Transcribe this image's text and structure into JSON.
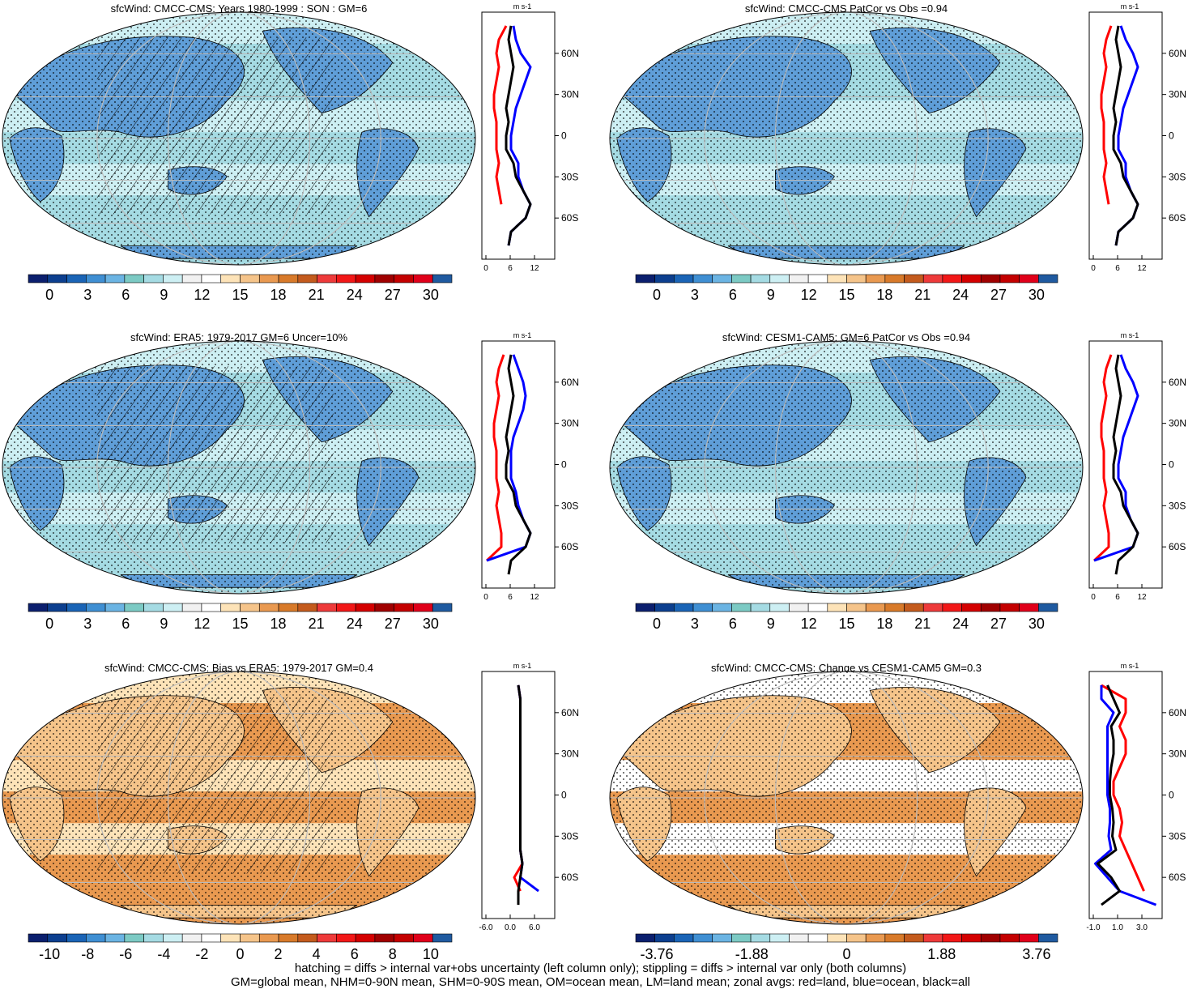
{
  "colorbars": {
    "abs": {
      "colors": [
        "#0b1f6e",
        "#0c3f8f",
        "#1a64b6",
        "#3f8fd3",
        "#6bb4e3",
        "#7ccac4",
        "#a5dbe3",
        "#cdeff3",
        "#f1f1f1",
        "#ffffff",
        "#fde3b8",
        "#f5c48a",
        "#e99950",
        "#d87a2a",
        "#c45b1d",
        "#ee3a3a",
        "#f21717",
        "#d40000",
        "#a00000",
        "#c40000",
        "#e0001a",
        "#1f5aa0"
      ],
      "tick_labels": [
        "0",
        "3",
        "6",
        "9",
        "12",
        "15",
        "18",
        "21",
        "24",
        "27",
        "30"
      ]
    },
    "bias": {
      "colors": [
        "#0b1f6e",
        "#0c3f8f",
        "#1a64b6",
        "#3f8fd3",
        "#6bb4e3",
        "#7ccac4",
        "#a5dbe3",
        "#cdeff3",
        "#f1f1f1",
        "#ffffff",
        "#fde3b8",
        "#f5c48a",
        "#e99950",
        "#d87a2a",
        "#c45b1d",
        "#ee3a3a",
        "#f21717",
        "#d40000",
        "#a00000",
        "#c40000",
        "#e0001a",
        "#1f5aa0"
      ],
      "tick_labels": [
        "-10",
        "-8",
        "-6",
        "-4",
        "-2",
        "0",
        "2",
        "4",
        "6",
        "8",
        "10"
      ]
    },
    "change": {
      "colors": [
        "#0b1f6e",
        "#0c3f8f",
        "#1a64b6",
        "#3f8fd3",
        "#6bb4e3",
        "#7ccac4",
        "#a5dbe3",
        "#cdeff3",
        "#f1f1f1",
        "#ffffff",
        "#fde3b8",
        "#f5c48a",
        "#e99950",
        "#d87a2a",
        "#c45b1d",
        "#ee3a3a",
        "#f21717",
        "#d40000",
        "#a00000",
        "#c40000",
        "#e0001a",
        "#1f5aa0"
      ],
      "tick_labels": [
        "-3.76",
        "-1.88",
        "0",
        "1.88",
        "3.76"
      ]
    }
  },
  "chart_data": [
    {
      "type": "heatmap",
      "title": "sfcWind: CMCC-CMS: Years 1980-1999 : SON : GM=6",
      "map_palette": [
        "#5f9ed8",
        "#a5dbe3",
        "#cdeff3"
      ],
      "hatching": true,
      "colorbar": "abs",
      "zonal_panel": {
        "title": "m s-1",
        "xticks": [
          "0",
          "6",
          "12"
        ],
        "xlim": [
          0,
          15
        ],
        "yticks": [
          "60N",
          "30N",
          "0",
          "30S",
          "60S"
        ],
        "lat": [
          80,
          70,
          60,
          50,
          40,
          30,
          20,
          10,
          0,
          -10,
          -20,
          -30,
          -40,
          -50,
          -60,
          -70,
          -80
        ],
        "series": [
          {
            "name": "land",
            "color": "#ff0000",
            "values": [
              5,
              3.5,
              3,
              3.5,
              3,
              2.5,
              2.5,
              3,
              3,
              3,
              3.5,
              3,
              3.5,
              4,
              null,
              null,
              null
            ]
          },
          {
            "name": "ocean",
            "color": "#0000ff",
            "values": [
              6.5,
              7,
              8,
              10,
              9,
              8,
              7,
              6.5,
              6,
              6,
              7.5,
              7.5,
              8.5,
              10,
              9,
              6,
              5.5
            ]
          },
          {
            "name": "all",
            "color": "#000000",
            "values": [
              6,
              5.5,
              6,
              6.5,
              6,
              5.5,
              5,
              5.5,
              5,
              5,
              6.5,
              7,
              8.5,
              10,
              9,
              6,
              5.5
            ]
          }
        ]
      }
    },
    {
      "type": "heatmap",
      "title": "sfcWind: CMCC-CMS PatCor vs Obs =0.94",
      "map_palette": [
        "#5f9ed8",
        "#a5dbe3",
        "#cdeff3"
      ],
      "hatching": false,
      "colorbar": "abs",
      "zonal_panel": {
        "title": "m s-1",
        "xticks": [
          "0",
          "6",
          "12"
        ],
        "xlim": [
          0,
          15
        ],
        "yticks": [
          "60N",
          "30N",
          "0",
          "30S",
          "60S"
        ],
        "lat": [
          80,
          70,
          60,
          50,
          40,
          30,
          20,
          10,
          0,
          -10,
          -20,
          -30,
          -40,
          -50,
          -60,
          -70,
          -80
        ],
        "series": [
          {
            "name": "land",
            "color": "#ff0000",
            "values": [
              4.5,
              3.5,
              3,
              3.5,
              3,
              2.5,
              2.5,
              3,
              3,
              3,
              3.5,
              3,
              3.5,
              4,
              null,
              null,
              null
            ]
          },
          {
            "name": "ocean",
            "color": "#0000ff",
            "values": [
              6.5,
              7.5,
              9,
              10,
              9,
              8,
              7,
              6.5,
              6,
              6,
              7.5,
              7.5,
              8.5,
              10,
              9,
              6,
              5.5
            ]
          },
          {
            "name": "all",
            "color": "#000000",
            "values": [
              6,
              5.5,
              6,
              6.5,
              6,
              5.5,
              5,
              5.5,
              5,
              5,
              6.5,
              7,
              8.5,
              10,
              9,
              6,
              5.5
            ]
          }
        ]
      }
    },
    {
      "type": "heatmap",
      "title": "sfcWind: ERA5: 1979-2017 GM=6 Uncer=10%",
      "map_palette": [
        "#5f9ed8",
        "#a5dbe3",
        "#cdeff3"
      ],
      "hatching": true,
      "colorbar": "abs",
      "zonal_panel": {
        "title": "m s-1",
        "xticks": [
          "0",
          "6",
          "12"
        ],
        "xlim": [
          0,
          15
        ],
        "yticks": [
          "60N",
          "30N",
          "0",
          "30S",
          "60S"
        ],
        "lat": [
          80,
          70,
          60,
          50,
          40,
          30,
          20,
          10,
          0,
          -10,
          -20,
          -30,
          -40,
          -50,
          -60,
          -70,
          -80
        ],
        "series": [
          {
            "name": "land",
            "color": "#ff0000",
            "values": [
              4.5,
              3.5,
              3,
              3.5,
              3,
              2.5,
              2.5,
              3,
              3,
              3,
              3.5,
              3,
              3.5,
              4,
              4,
              1,
              null
            ]
          },
          {
            "name": "ocean",
            "color": "#0000ff",
            "values": [
              6.5,
              7.5,
              8.5,
              9,
              8.5,
              7.5,
              6.5,
              6,
              6,
              6,
              7,
              7.5,
              8.5,
              10,
              9,
              1,
              null
            ]
          },
          {
            "name": "all",
            "color": "#000000",
            "values": [
              6,
              5.5,
              6,
              6.5,
              6,
              5.5,
              5,
              5.5,
              5,
              5,
              6.5,
              7,
              8.5,
              10,
              9,
              6,
              5.5
            ]
          }
        ]
      }
    },
    {
      "type": "heatmap",
      "title": "sfcWind: CESM1-CAM5: GM=6 PatCor vs Obs =0.94",
      "map_palette": [
        "#5f9ed8",
        "#a5dbe3",
        "#cdeff3"
      ],
      "hatching": false,
      "colorbar": "abs",
      "zonal_panel": {
        "title": "m s-1",
        "xticks": [
          "0",
          "6",
          "12"
        ],
        "xlim": [
          0,
          15
        ],
        "yticks": [
          "60N",
          "30N",
          "0",
          "30S",
          "60S"
        ],
        "lat": [
          80,
          70,
          60,
          50,
          40,
          30,
          20,
          10,
          0,
          -10,
          -20,
          -30,
          -40,
          -50,
          -60,
          -70,
          -80
        ],
        "series": [
          {
            "name": "land",
            "color": "#ff0000",
            "values": [
              4.5,
              3.5,
              3,
              3.5,
              3,
              2.5,
              2.5,
              3,
              3,
              3,
              3.5,
              3,
              3.5,
              4,
              4,
              1,
              null
            ]
          },
          {
            "name": "ocean",
            "color": "#0000ff",
            "values": [
              6.5,
              7.5,
              9,
              10,
              9,
              8,
              7,
              6.5,
              6,
              6,
              7.5,
              7.5,
              8.5,
              10,
              9,
              1,
              null
            ]
          },
          {
            "name": "all",
            "color": "#000000",
            "values": [
              6,
              5.5,
              6,
              6.5,
              6,
              5.5,
              5,
              5.5,
              5,
              5,
              6.5,
              7,
              8.5,
              10,
              9,
              6,
              5.5
            ]
          }
        ]
      }
    },
    {
      "type": "heatmap",
      "title": "sfcWind: CMCC-CMS: Bias vs ERA5: 1979-2017  GM=0.4",
      "map_palette": [
        "#f5c48a",
        "#e99950",
        "#fde3b8"
      ],
      "hatching": true,
      "colorbar": "bias",
      "zonal_panel": {
        "title": "m s-1",
        "xticks": [
          "-6.0",
          "0.0",
          "6.0"
        ],
        "xlim": [
          -9,
          9
        ],
        "yticks": [
          "60N",
          "30N",
          "0",
          "30S",
          "60S"
        ],
        "lat": [
          80,
          70,
          60,
          50,
          40,
          30,
          20,
          10,
          0,
          -10,
          -20,
          -30,
          -40,
          -50,
          -60,
          -70,
          -80
        ],
        "series": [
          {
            "name": "land",
            "color": "#ff0000",
            "values": [
              0,
              0.5,
              0.5,
              0.5,
              0.5,
              0.5,
              0.5,
              0.5,
              0.5,
              0.5,
              0.5,
              0.5,
              0.5,
              1,
              -1,
              0.5,
              null
            ]
          },
          {
            "name": "ocean",
            "color": "#0000ff",
            "values": [
              0,
              0.5,
              0.5,
              0.5,
              0.5,
              0.5,
              0.5,
              0.5,
              0.5,
              0.5,
              0.5,
              0.5,
              0.5,
              1,
              0.5,
              5,
              null
            ]
          },
          {
            "name": "all",
            "color": "#000000",
            "values": [
              0,
              0.5,
              0.5,
              0.5,
              0.5,
              0.5,
              0.5,
              0.5,
              0.5,
              0.5,
              0.5,
              0.5,
              0.5,
              1,
              0.5,
              0,
              0
            ]
          }
        ]
      }
    },
    {
      "type": "heatmap",
      "title": "sfcWind: CMCC-CMS: Change vs CESM1-CAM5 GM=0.3",
      "map_palette": [
        "#f5c48a",
        "#e99950",
        "#ffffff"
      ],
      "hatching": false,
      "colorbar": "change",
      "zonal_panel": {
        "title": "m s-1",
        "xticks": [
          "-1.0",
          "1.0",
          "3.0"
        ],
        "xlim": [
          -1.5,
          4.5
        ],
        "yticks": [
          "60N",
          "30N",
          "0",
          "30S",
          "60S"
        ],
        "lat": [
          80,
          70,
          60,
          50,
          40,
          30,
          20,
          10,
          0,
          -10,
          -20,
          -30,
          -40,
          -50,
          -60,
          -70,
          -80
        ],
        "series": [
          {
            "name": "land",
            "color": "#ff0000",
            "values": [
              -0.5,
              1.5,
              1.5,
              1,
              1.5,
              1.5,
              1,
              0.5,
              0.5,
              1,
              1.2,
              1,
              1.5,
              2,
              2.5,
              3,
              null
            ]
          },
          {
            "name": "ocean",
            "color": "#0000ff",
            "values": [
              -0.5,
              -0.5,
              0.5,
              0,
              0,
              0,
              0,
              0,
              0,
              0.2,
              0.2,
              0.1,
              0.3,
              -1,
              0,
              1,
              4
            ]
          },
          {
            "name": "all",
            "color": "#000000",
            "values": [
              0,
              0.5,
              1,
              0.3,
              0.5,
              0.5,
              0.3,
              0.2,
              0.2,
              0.4,
              0.5,
              0.4,
              0.7,
              -0.8,
              0.3,
              1,
              -0.5
            ]
          }
        ]
      }
    }
  ],
  "footer": {
    "line1": "hatching = diffs > internal var+obs uncertainty (left column only); stippling = diffs > internal var only (both columns)",
    "line2": "GM=global mean, NHM=0-90N mean, SHM=0-90S mean, OM=ocean mean, LM=land mean; zonal avgs: red=land, blue=ocean, black=all"
  }
}
